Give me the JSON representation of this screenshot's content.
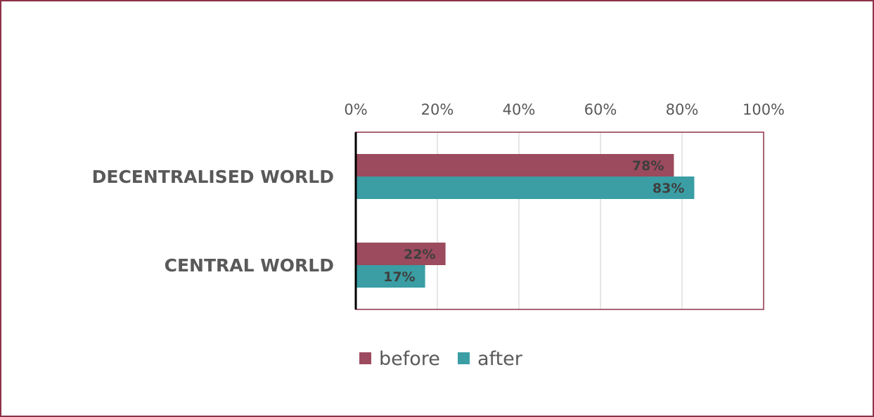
{
  "chart_data": {
    "type": "bar",
    "orientation": "horizontal",
    "categories": [
      "DECENTRALISED WORLD",
      "CENTRAL WORLD"
    ],
    "series": [
      {
        "name": "before",
        "values": [
          78,
          22
        ],
        "color": "#9c4a5d",
        "labels": [
          "78%",
          "22%"
        ]
      },
      {
        "name": "after",
        "values": [
          83,
          17
        ],
        "color": "#3a9ea4",
        "labels": [
          "83%",
          "17%"
        ]
      }
    ],
    "xlim": [
      0,
      100
    ],
    "ticks": [
      {
        "value": 0,
        "label": "0%"
      },
      {
        "value": 20,
        "label": "20%"
      },
      {
        "value": 40,
        "label": "40%"
      },
      {
        "value": 60,
        "label": "60%"
      },
      {
        "value": 80,
        "label": "80%"
      },
      {
        "value": 100,
        "label": "100%"
      }
    ],
    "axis_position": "top",
    "grid": true,
    "legend_position": "bottom",
    "title": "",
    "xlabel": "",
    "ylabel": ""
  },
  "colors": {
    "frame": "#8e3148",
    "plot_border": "#8e3148",
    "grid": "#d9d9d9",
    "category_axis": "#000000"
  }
}
